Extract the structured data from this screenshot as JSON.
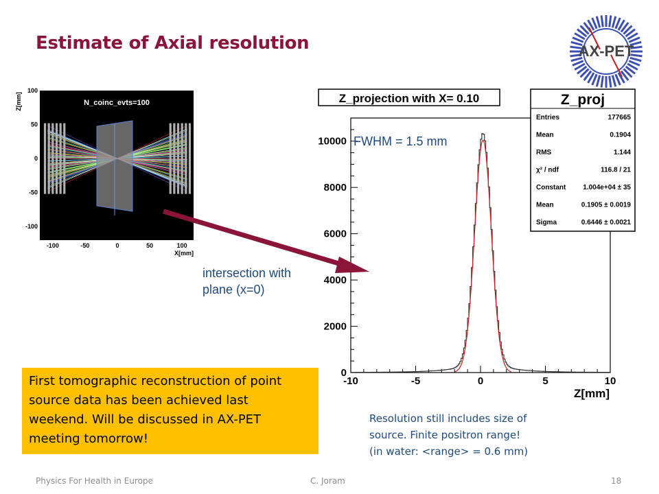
{
  "slide": {
    "title": "Estimate of Axial resolution",
    "logo_text": "AX-PET",
    "fwhm_label": "FWHM = 1.5 mm",
    "intersection_line1": "intersection with",
    "intersection_line2": "plane (x=0)",
    "note_line1": "First tomographic reconstruction of point",
    "note_line2": "source data has been achieved last",
    "note_line3": "weekend. Will be discussed in AX-PET",
    "note_line4": "meeting tomorrow!",
    "resolution_line1": "Resolution still includes size of",
    "resolution_line2": "source. Finite positron range!",
    "resolution_line3": "(in water: <range> = 0.6 mm)",
    "footer_left": "Physics For Health in Europe",
    "footer_center": "C. Joram",
    "footer_right": "18",
    "colors": {
      "title": "#8b1538",
      "accent_blue": "#1f497d",
      "note_bg": "#ffc000",
      "arrow": "#8b1538",
      "fit": "#d02020"
    }
  },
  "chart_data": [
    {
      "type": "line",
      "title": "Z_projection with X= 0.10",
      "xlabel": "Z[mm]",
      "ylabel": "",
      "xlim": [
        -10,
        10
      ],
      "ylim": [
        0,
        11000
      ],
      "xticks": [
        -10,
        -5,
        0,
        5,
        10
      ],
      "yticks": [
        0,
        2000,
        4000,
        6000,
        8000,
        10000
      ],
      "grid": false,
      "series": [
        {
          "name": "",
          "kind": "histogram",
          "model": "gaussian-with-tails",
          "peak": 10400,
          "mean": 0.19,
          "sigma": 0.6446
        },
        {
          "name": "",
          "kind": "gaussian-fit",
          "constant": 10040,
          "mean": 0.1905,
          "sigma": 0.6446
        }
      ],
      "stats_box": {
        "title": "Z_proj",
        "placement": "top-right",
        "rows": [
          {
            "label": "Entries",
            "value": "177665"
          },
          {
            "label": "Mean",
            "value": "0.1904"
          },
          {
            "label": "RMS",
            "value": "1.144"
          },
          {
            "label": "χ² / ndf",
            "value": "116.8 / 21"
          },
          {
            "label": "Constant",
            "value": "1.004e+04 ± 35"
          },
          {
            "label": "Mean",
            "value": "0.1905 ± 0.0019"
          },
          {
            "label": "Sigma",
            "value": "0.6446 ± 0.0021"
          }
        ]
      }
    },
    {
      "type": "scatter",
      "title": "N_coinc_evts=100",
      "xlabel": "X[mm]",
      "ylabel": "Z[mm]",
      "xlim": [
        -120,
        120
      ],
      "ylim": [
        -120,
        100
      ],
      "xticks": [
        -100,
        -50,
        0,
        50,
        100
      ],
      "yticks": [
        -100,
        -50,
        0,
        50,
        100
      ],
      "background": "#000000",
      "lines_count": 100
    }
  ]
}
